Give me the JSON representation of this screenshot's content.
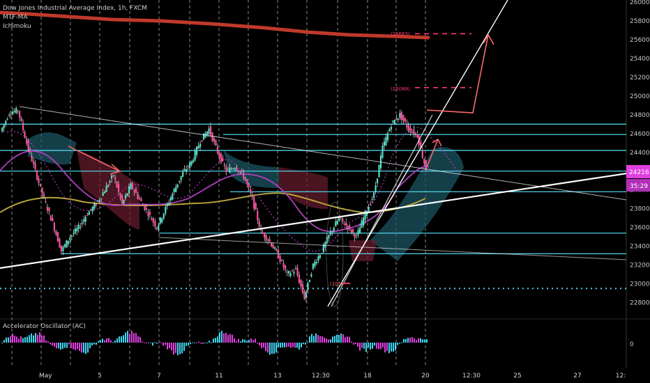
{
  "header": {
    "title": "Dow Jones Industrial Average Index, 1h, FXCM",
    "indicators": [
      "MTF-MA",
      "Ichimoku"
    ]
  },
  "oscillator": {
    "label": "Accelerator Oscillator (AC)",
    "zero_label": "0"
  },
  "price_tags": {
    "last_price": "24216",
    "countdown": "35:29"
  },
  "colors": {
    "background": "#000000",
    "level_line": "#4fd0e6",
    "trendline": "#ffffff",
    "annotation": "#ff6b6b",
    "target": "#ff3b6b",
    "ma_long": "#c0392b",
    "ma_mid": "#b8a33a",
    "ma_fast": "#b040c0",
    "cloud_bull": "#1e5a66",
    "cloud_bear": "#6a1c2e",
    "price_tag": "#e040e0",
    "ac_up": "#3fd6f0",
    "ac_down": "#e040e0"
  },
  "chart_data": {
    "type": "line",
    "title": "Dow Jones Industrial Average Index, 1h, FXCM",
    "x_tick_labels": [
      "May",
      "5",
      "7",
      "11",
      "13",
      "12:30",
      "18",
      "20",
      "12:30",
      "25",
      "27",
      "12:"
    ],
    "y_tick_labels": [
      "26000",
      "25800",
      "25600",
      "25400",
      "25200",
      "25000",
      "24800",
      "24600",
      "24400",
      "24200",
      "24000",
      "23800",
      "23600",
      "23400",
      "23200",
      "23000",
      "22800"
    ],
    "ylim": [
      22700,
      26000
    ],
    "horizontal_levels": [
      24700,
      24590,
      24420,
      24200,
      23980,
      23540,
      23320
    ],
    "dotted_level": 22950,
    "target_levels": [
      {
        "label": "(25663)",
        "value": 25663
      },
      {
        "label": "(25089)",
        "value": 25089
      }
    ],
    "low_marker": "(105)",
    "series": [
      {
        "values": [
          24620,
          24820,
          24850,
          24500,
          24200,
          23900,
          23650,
          23350,
          23500,
          23600,
          23750,
          23850,
          24000,
          24160,
          23850,
          24050,
          23900,
          23750,
          23600,
          23800,
          24000,
          24180,
          24300,
          24520,
          24650,
          24400,
          24200,
          24250,
          24150,
          23900,
          23550,
          23450,
          23300,
          23100,
          23150,
          22850,
          23200,
          23350,
          23550,
          23700,
          23600,
          23500,
          23750,
          23950,
          24450,
          24700,
          24800,
          24650,
          24580,
          24216
        ]
      }
    ]
  }
}
